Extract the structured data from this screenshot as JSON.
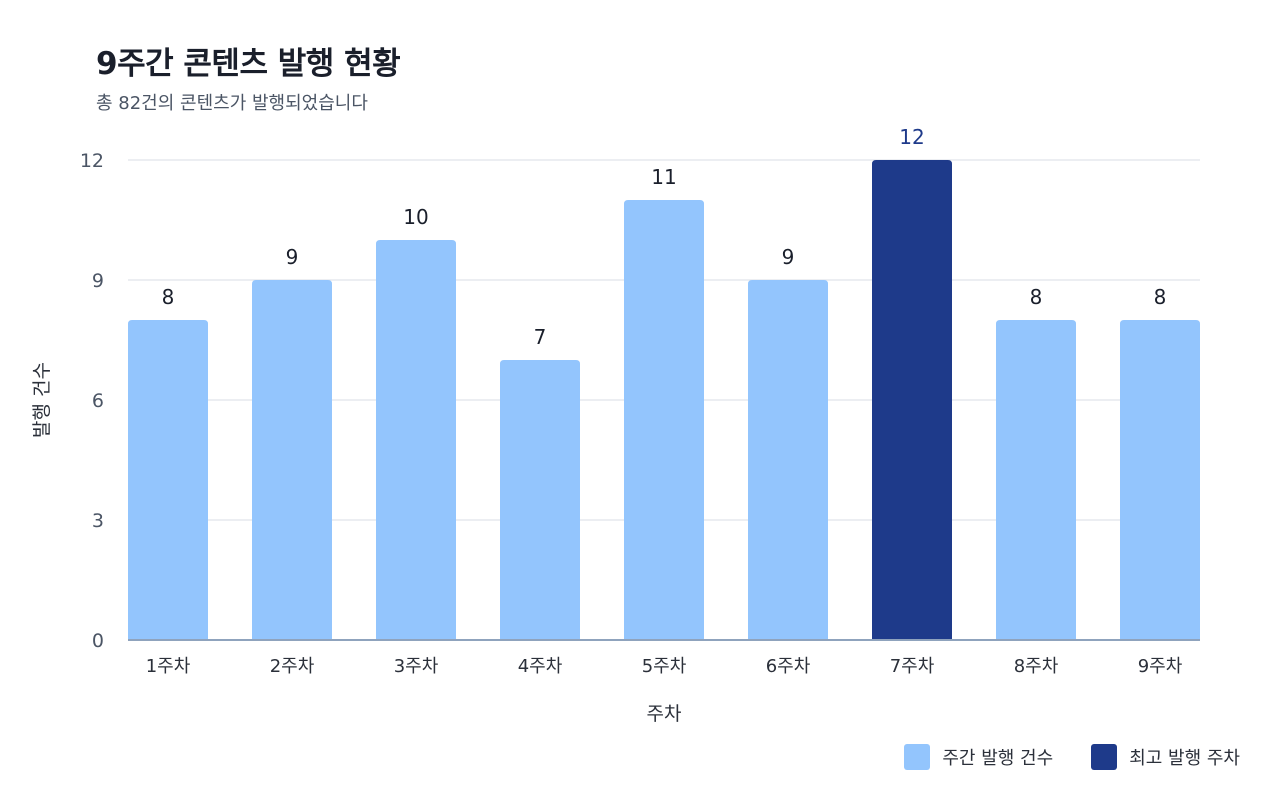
{
  "chart_data": {
    "type": "bar",
    "title": "9주간 콘텐츠 발행 현황",
    "subtitle": "총 82건의 콘텐츠가 발행되었습니다",
    "xlabel": "주차",
    "ylabel": "발행 건수",
    "categories": [
      "1주차",
      "2주차",
      "3주차",
      "4주차",
      "5주차",
      "6주차",
      "7주차",
      "8주차",
      "9주차"
    ],
    "values": [
      8,
      9,
      10,
      7,
      11,
      9,
      12,
      8,
      8
    ],
    "highlight_index": 6,
    "ylim": [
      0,
      12
    ],
    "yticks": [
      0,
      3,
      6,
      9,
      12
    ],
    "grid": true,
    "data_labels": true,
    "legend_position": "bottom-right",
    "legend": [
      {
        "label": "주간 발행 건수",
        "color": "#93c5fd"
      },
      {
        "label": "최고 발행 주차",
        "color": "#1e3a8a"
      }
    ],
    "colors": {
      "bar": "#93c5fd",
      "highlight": "#1e3a8a",
      "grid": "#e6e9ee",
      "axis": "#8fa3bd",
      "tick_text": "#4b5565",
      "label_text": "#2b303a",
      "value_text": "#1a1f2b",
      "highlight_text": "#1e3a8a"
    }
  }
}
